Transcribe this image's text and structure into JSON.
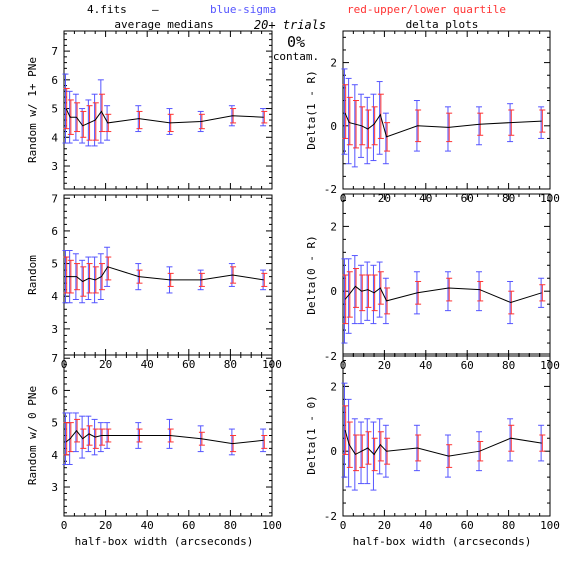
{
  "header": {
    "file_label": "4.fits",
    "dash": "–",
    "blue_label": "blue-sigma",
    "red_label": "red-upper/lower quartile",
    "blue_color": "#5555ff",
    "red_color": "#ff3333"
  },
  "center": {
    "trials": "20+ trials",
    "percent": "0%",
    "contam": "contam."
  },
  "columns": {
    "left_title": "average medians",
    "right_title": "delta plots"
  },
  "xlabel": "half-box width (arcseconds)",
  "chart_data": [
    {
      "type": "line",
      "panel": "left-top",
      "ylabel": "Random w/ 1+ PNe",
      "xlim": [
        0,
        100
      ],
      "ylim": [
        2.2,
        7.7
      ],
      "yticks": [
        3,
        4,
        5,
        6,
        7
      ],
      "xticks": [
        0,
        20,
        40,
        60,
        80,
        100
      ],
      "x": [
        1,
        3,
        6,
        9,
        12,
        15,
        18,
        21,
        36,
        51,
        66,
        81,
        96
      ],
      "y": [
        5.0,
        4.7,
        4.7,
        4.4,
        4.5,
        4.6,
        4.9,
        4.5,
        4.65,
        4.5,
        4.55,
        4.75,
        4.7
      ],
      "sigma": [
        [
          3.8,
          6.2
        ],
        [
          3.8,
          5.6
        ],
        [
          3.9,
          5.5
        ],
        [
          3.8,
          5.0
        ],
        [
          3.7,
          5.3
        ],
        [
          3.7,
          5.5
        ],
        [
          3.8,
          6.0
        ],
        [
          3.9,
          5.1
        ],
        [
          4.2,
          5.1
        ],
        [
          4.1,
          5.0
        ],
        [
          4.2,
          4.9
        ],
        [
          4.4,
          5.1
        ],
        [
          4.4,
          5.0
        ]
      ],
      "quartile": [
        [
          4.3,
          5.7
        ],
        [
          4.1,
          5.3
        ],
        [
          4.2,
          5.2
        ],
        [
          4.0,
          4.9
        ],
        [
          3.9,
          5.1
        ],
        [
          3.9,
          5.2
        ],
        [
          4.2,
          5.5
        ],
        [
          4.2,
          4.8
        ],
        [
          4.3,
          4.9
        ],
        [
          4.2,
          4.8
        ],
        [
          4.3,
          4.8
        ],
        [
          4.5,
          5.0
        ],
        [
          4.5,
          4.9
        ]
      ]
    },
    {
      "type": "line",
      "panel": "left-mid",
      "ylabel": "Random",
      "xlim": [
        0,
        100
      ],
      "ylim": [
        2.2,
        7.1
      ],
      "yticks": [
        3,
        4,
        5,
        6,
        7
      ],
      "xticks": [
        0,
        20,
        40,
        60,
        80,
        100
      ],
      "x": [
        1,
        3,
        6,
        9,
        12,
        15,
        18,
        21,
        36,
        51,
        66,
        81,
        96
      ],
      "y": [
        4.6,
        4.6,
        4.6,
        4.45,
        4.55,
        4.5,
        4.6,
        4.9,
        4.6,
        4.5,
        4.5,
        4.65,
        4.5
      ],
      "sigma": [
        [
          3.8,
          5.4
        ],
        [
          3.8,
          5.4
        ],
        [
          3.9,
          5.3
        ],
        [
          3.8,
          5.1
        ],
        [
          3.9,
          5.2
        ],
        [
          3.8,
          5.2
        ],
        [
          3.9,
          5.3
        ],
        [
          4.3,
          5.5
        ],
        [
          4.2,
          5.0
        ],
        [
          4.1,
          4.9
        ],
        [
          4.2,
          4.8
        ],
        [
          4.3,
          5.0
        ],
        [
          4.2,
          4.8
        ]
      ],
      "quartile": [
        [
          4.1,
          5.2
        ],
        [
          4.1,
          5.1
        ],
        [
          4.2,
          5.0
        ],
        [
          4.0,
          4.9
        ],
        [
          4.1,
          5.0
        ],
        [
          4.1,
          4.9
        ],
        [
          4.2,
          5.0
        ],
        [
          4.5,
          5.2
        ],
        [
          4.4,
          4.8
        ],
        [
          4.3,
          4.7
        ],
        [
          4.3,
          4.7
        ],
        [
          4.4,
          4.9
        ],
        [
          4.3,
          4.7
        ]
      ]
    },
    {
      "type": "line",
      "panel": "left-bot",
      "ylabel": "Random w/ 0 PNe",
      "xlim": [
        0,
        100
      ],
      "ylim": [
        2.1,
        7.1
      ],
      "yticks": [
        3,
        4,
        5,
        6,
        7
      ],
      "xticks": [
        0,
        20,
        40,
        60,
        80,
        100
      ],
      "x": [
        1,
        3,
        6,
        9,
        12,
        15,
        18,
        21,
        36,
        51,
        66,
        81,
        96
      ],
      "y": [
        4.4,
        4.5,
        4.75,
        4.5,
        4.65,
        4.55,
        4.6,
        4.6,
        4.6,
        4.6,
        4.5,
        4.35,
        4.45
      ],
      "sigma": [
        [
          3.7,
          5.3
        ],
        [
          3.7,
          5.3
        ],
        [
          4.1,
          5.3
        ],
        [
          3.9,
          5.2
        ],
        [
          4.1,
          5.2
        ],
        [
          4.0,
          5.1
        ],
        [
          4.1,
          5.0
        ],
        [
          4.2,
          5.0
        ],
        [
          4.2,
          5.0
        ],
        [
          4.2,
          5.1
        ],
        [
          4.1,
          4.9
        ],
        [
          4.0,
          4.8
        ],
        [
          4.1,
          4.8
        ]
      ],
      "quartile": [
        [
          4.0,
          5.0
        ],
        [
          4.1,
          5.0
        ],
        [
          4.4,
          5.1
        ],
        [
          4.2,
          4.8
        ],
        [
          4.3,
          4.9
        ],
        [
          4.2,
          4.8
        ],
        [
          4.3,
          4.8
        ],
        [
          4.4,
          4.8
        ],
        [
          4.4,
          4.8
        ],
        [
          4.4,
          4.8
        ],
        [
          4.3,
          4.7
        ],
        [
          4.1,
          4.6
        ],
        [
          4.2,
          4.6
        ]
      ]
    },
    {
      "type": "line",
      "panel": "right-top",
      "ylabel": "Delta(1 - R)",
      "xlim": [
        0,
        100
      ],
      "ylim": [
        -2,
        3
      ],
      "yticks": [
        -2,
        0,
        2
      ],
      "xticks": [
        0,
        20,
        40,
        60,
        80,
        100
      ],
      "x": [
        1,
        3,
        6,
        9,
        12,
        15,
        18,
        21,
        36,
        51,
        66,
        81,
        96
      ],
      "y": [
        0.4,
        0.1,
        0.05,
        0.0,
        -0.1,
        0.05,
        0.35,
        -0.35,
        0.0,
        -0.05,
        0.05,
        0.1,
        0.15
      ],
      "sigma": [
        [
          -0.9,
          1.8
        ],
        [
          -1.2,
          1.5
        ],
        [
          -1.3,
          1.3
        ],
        [
          -1.0,
          1.0
        ],
        [
          -1.2,
          0.9
        ],
        [
          -1.1,
          1.0
        ],
        [
          -0.9,
          1.4
        ],
        [
          -1.2,
          0.4
        ],
        [
          -0.8,
          0.8
        ],
        [
          -0.8,
          0.6
        ],
        [
          -0.6,
          0.6
        ],
        [
          -0.5,
          0.7
        ],
        [
          -0.4,
          0.6
        ]
      ],
      "quartile": [
        [
          -0.4,
          1.3
        ],
        [
          -0.6,
          0.9
        ],
        [
          -0.7,
          0.8
        ],
        [
          -0.6,
          0.6
        ],
        [
          -0.7,
          0.5
        ],
        [
          -0.6,
          0.6
        ],
        [
          -0.4,
          1.0
        ],
        [
          -0.8,
          0.1
        ],
        [
          -0.5,
          0.5
        ],
        [
          -0.5,
          0.4
        ],
        [
          -0.3,
          0.4
        ],
        [
          -0.3,
          0.5
        ],
        [
          -0.2,
          0.5
        ]
      ]
    },
    {
      "type": "line",
      "panel": "right-mid",
      "ylabel": "Delta(0 - R)",
      "xlim": [
        0,
        100
      ],
      "ylim": [
        -2,
        3
      ],
      "yticks": [
        -2,
        0,
        2
      ],
      "xticks": [
        0,
        20,
        40,
        60,
        80,
        100
      ],
      "x": [
        1,
        3,
        6,
        9,
        12,
        15,
        18,
        21,
        36,
        51,
        66,
        81,
        96
      ],
      "y": [
        -0.25,
        -0.1,
        0.15,
        0.0,
        0.05,
        -0.05,
        0.1,
        -0.3,
        -0.05,
        0.1,
        0.05,
        -0.35,
        -0.05
      ],
      "sigma": [
        [
          -1.6,
          1.0
        ],
        [
          -1.3,
          1.0
        ],
        [
          -1.0,
          1.1
        ],
        [
          -1.0,
          0.8
        ],
        [
          -0.9,
          0.9
        ],
        [
          -1.0,
          0.8
        ],
        [
          -0.8,
          0.9
        ],
        [
          -1.0,
          0.4
        ],
        [
          -0.7,
          0.6
        ],
        [
          -0.6,
          0.6
        ],
        [
          -0.6,
          0.6
        ],
        [
          -1.0,
          0.3
        ],
        [
          -0.5,
          0.4
        ]
      ],
      "quartile": [
        [
          -1.0,
          0.5
        ],
        [
          -0.8,
          0.6
        ],
        [
          -0.5,
          0.7
        ],
        [
          -0.6,
          0.5
        ],
        [
          -0.5,
          0.5
        ],
        [
          -0.6,
          0.5
        ],
        [
          -0.4,
          0.6
        ],
        [
          -0.7,
          0.1
        ],
        [
          -0.4,
          0.3
        ],
        [
          -0.3,
          0.4
        ],
        [
          -0.3,
          0.3
        ],
        [
          -0.7,
          0.0
        ],
        [
          -0.3,
          0.2
        ]
      ]
    },
    {
      "type": "line",
      "panel": "right-bot",
      "ylabel": "Delta(1 - 0)",
      "xlim": [
        0,
        100
      ],
      "ylim": [
        -2,
        3
      ],
      "yticks": [
        -2,
        0,
        2
      ],
      "xticks": [
        0,
        20,
        40,
        60,
        80,
        100
      ],
      "x": [
        1,
        3,
        6,
        9,
        12,
        15,
        18,
        21,
        36,
        51,
        66,
        81,
        96
      ],
      "y": [
        0.65,
        0.2,
        -0.1,
        0.0,
        0.1,
        -0.1,
        0.2,
        0.0,
        0.1,
        -0.15,
        0.0,
        0.4,
        0.25
      ],
      "sigma": [
        [
          -0.8,
          2.1
        ],
        [
          -1.1,
          1.6
        ],
        [
          -1.2,
          1.0
        ],
        [
          -1.0,
          0.9
        ],
        [
          -1.0,
          1.0
        ],
        [
          -1.2,
          0.9
        ],
        [
          -0.7,
          1.0
        ],
        [
          -0.8,
          0.8
        ],
        [
          -0.6,
          0.8
        ],
        [
          -0.8,
          0.5
        ],
        [
          -0.6,
          0.6
        ],
        [
          -0.3,
          1.0
        ],
        [
          -0.3,
          0.8
        ]
      ],
      "quartile": [
        [
          -0.1,
          1.4
        ],
        [
          -0.5,
          0.9
        ],
        [
          -0.6,
          0.5
        ],
        [
          -0.5,
          0.5
        ],
        [
          -0.4,
          0.6
        ],
        [
          -0.6,
          0.4
        ],
        [
          -0.3,
          0.6
        ],
        [
          -0.4,
          0.4
        ],
        [
          -0.3,
          0.5
        ],
        [
          -0.5,
          0.2
        ],
        [
          -0.3,
          0.3
        ],
        [
          0.0,
          0.8
        ],
        [
          0.0,
          0.5
        ]
      ]
    }
  ]
}
